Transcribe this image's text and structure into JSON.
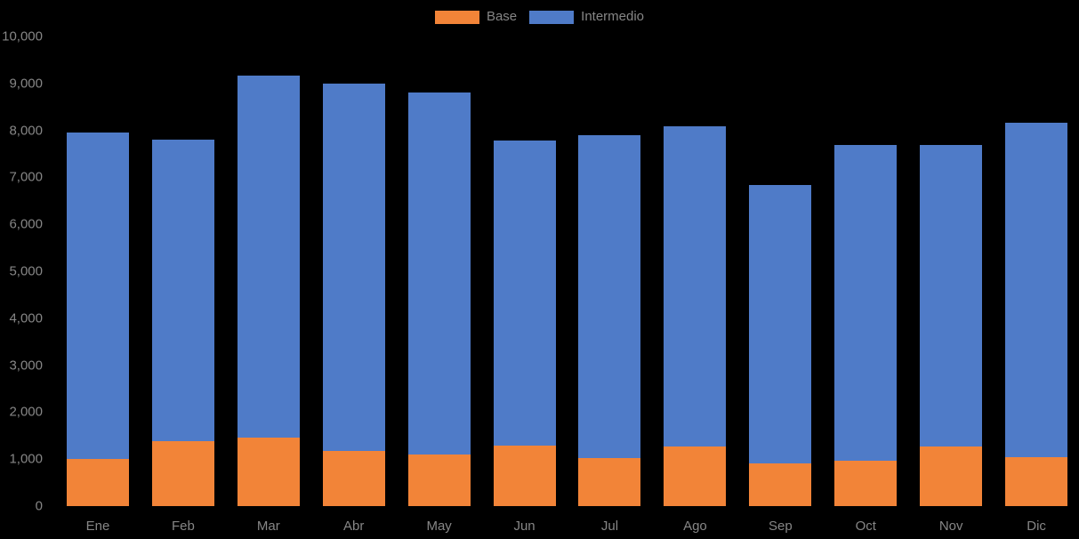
{
  "chart": {
    "background_color": "#000000",
    "text_color": "#868686",
    "legend": {
      "position": "top-center",
      "items": [
        {
          "label": "Base",
          "color": "#F28438"
        },
        {
          "label": "Intermedio",
          "color": "#4F7BC8"
        }
      ]
    }
  },
  "chart_data": {
    "type": "bar",
    "stacked": true,
    "title": "",
    "xlabel": "",
    "ylabel": "",
    "categories": [
      "Ene",
      "Feb",
      "Mar",
      "Abr",
      "May",
      "Jun",
      "Jul",
      "Ago",
      "Sep",
      "Oct",
      "Nov",
      "Dic"
    ],
    "series": [
      {
        "name": "Base",
        "color": "#F28438",
        "values": [
          1000,
          1380,
          1450,
          1170,
          1100,
          1280,
          1020,
          1270,
          900,
          970,
          1270,
          1040
        ]
      },
      {
        "name": "Intermedio",
        "color": "#4F7BC8",
        "values": [
          6950,
          6420,
          7720,
          7820,
          7700,
          6500,
          6880,
          6820,
          5940,
          6720,
          6420,
          7130
        ]
      }
    ],
    "totals": [
      7950,
      7800,
      9170,
      8990,
      8800,
      7780,
      7900,
      8090,
      6840,
      7690,
      7690,
      8170
    ],
    "ylim": [
      0,
      10000
    ],
    "ytick_step": 1000,
    "ytick_labels": [
      "0",
      "1,000",
      "2,000",
      "3,000",
      "4,000",
      "5,000",
      "6,000",
      "7,000",
      "8,000",
      "9,000",
      "10,000"
    ],
    "grid": false,
    "legend_position": "top-center"
  }
}
